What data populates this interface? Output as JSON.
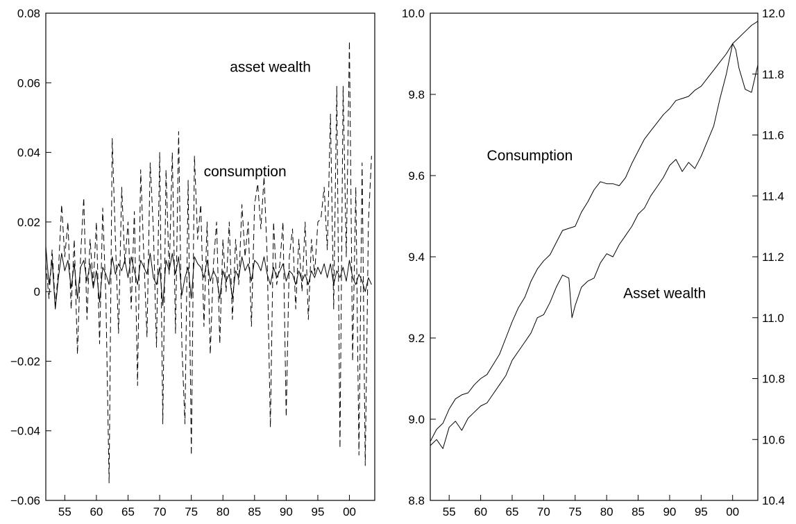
{
  "chart_data": [
    {
      "type": "line",
      "x_ticks": [
        {
          "value": 1955,
          "label": "55"
        },
        {
          "value": 1960,
          "label": "60"
        },
        {
          "value": 1965,
          "label": "65"
        },
        {
          "value": 1970,
          "label": "70"
        },
        {
          "value": 1975,
          "label": "75"
        },
        {
          "value": 1980,
          "label": "80"
        },
        {
          "value": 1985,
          "label": "85"
        },
        {
          "value": 1990,
          "label": "90"
        },
        {
          "value": 1995,
          "label": "95"
        },
        {
          "value": 2000,
          "label": "00"
        }
      ],
      "xlim": [
        1952,
        2004
      ],
      "ylim": [
        -0.06,
        0.08
      ],
      "y_ticks": [
        {
          "value": 0.08,
          "label": "0.08"
        },
        {
          "value": 0.06,
          "label": "0.06"
        },
        {
          "value": 0.04,
          "label": "0.04"
        },
        {
          "value": 0.02,
          "label": "0.02"
        },
        {
          "value": 0,
          "label": "0"
        },
        {
          "value": -0.02,
          "label": "−0.02"
        },
        {
          "value": -0.04,
          "label": "−0.04"
        },
        {
          "value": -0.06,
          "label": "−0.06"
        }
      ],
      "annotations": [
        {
          "text": "asset wealth",
          "x": 1987.5,
          "y": 0.0645
        },
        {
          "text": "consumption",
          "x": 1983.5,
          "y": 0.0345
        }
      ],
      "series": [
        {
          "style": "dashed",
          "x": [
            1952.0,
            1952.5,
            1953.0,
            1953.5,
            1954.0,
            1954.5,
            1955.0,
            1955.5,
            1956.0,
            1956.5,
            1957.0,
            1957.5,
            1958.0,
            1958.5,
            1959.0,
            1959.5,
            1960.0,
            1960.5,
            1961.0,
            1961.5,
            1962.0,
            1962.5,
            1963.0,
            1963.5,
            1964.0,
            1964.5,
            1965.0,
            1965.5,
            1966.0,
            1966.5,
            1967.0,
            1967.5,
            1968.0,
            1968.5,
            1969.0,
            1969.5,
            1970.0,
            1970.5,
            1971.0,
            1971.5,
            1972.0,
            1972.5,
            1973.0,
            1973.5,
            1974.0,
            1974.5,
            1975.0,
            1975.5,
            1976.0,
            1976.5,
            1977.0,
            1977.5,
            1978.0,
            1978.5,
            1979.0,
            1979.5,
            1980.0,
            1980.5,
            1981.0,
            1981.5,
            1982.0,
            1982.5,
            1983.0,
            1983.5,
            1984.0,
            1984.5,
            1985.0,
            1985.5,
            1986.0,
            1986.5,
            1987.0,
            1987.5,
            1988.0,
            1988.5,
            1989.0,
            1989.5,
            1990.0,
            1990.5,
            1991.0,
            1991.5,
            1992.0,
            1992.5,
            1993.0,
            1993.5,
            1994.0,
            1994.5,
            1995.0,
            1995.5,
            1996.0,
            1996.5,
            1997.0,
            1997.5,
            1998.0,
            1998.5,
            1999.0,
            1999.5,
            2000.0,
            2000.5,
            2001.0,
            2001.5,
            2002.0,
            2002.5,
            2003.0,
            2003.5
          ],
          "y": [
            0.008,
            -0.002,
            0.012,
            -0.004,
            0.006,
            0.025,
            0.01,
            0.02,
            -0.005,
            0.015,
            -0.018,
            0.01,
            0.027,
            -0.008,
            0.015,
            0.002,
            0.02,
            -0.015,
            0.024,
            -0.002,
            -0.055,
            0.044,
            0.015,
            -0.012,
            0.03,
            0.008,
            0.02,
            -0.005,
            0.023,
            -0.027,
            0.035,
            0.01,
            -0.013,
            0.037,
            0.018,
            -0.016,
            0.04,
            -0.038,
            0.035,
            0.005,
            0.04,
            -0.012,
            0.046,
            -0.015,
            -0.038,
            0.032,
            -0.047,
            0.039,
            0.015,
            0.025,
            -0.01,
            0.02,
            -0.018,
            0.008,
            0.02,
            -0.015,
            0.015,
            0.0,
            0.02,
            -0.008,
            0.015,
            0.002,
            0.025,
            0.01,
            0.02,
            -0.01,
            0.025,
            0.031,
            0.018,
            0.033,
            0.01,
            -0.039,
            0.02,
            0.002,
            0.008,
            0.02,
            -0.036,
            0.01,
            0.018,
            -0.005,
            0.015,
            0.0,
            0.02,
            -0.008,
            0.015,
            0.005,
            0.02,
            0.021,
            0.03,
            0.012,
            0.051,
            -0.005,
            0.059,
            -0.045,
            0.059,
            0.01,
            0.072,
            -0.02,
            0.03,
            -0.047,
            0.037,
            -0.05,
            0.02,
            0.039
          ]
        },
        {
          "style": "solid",
          "x": [
            1952.0,
            1952.5,
            1953.0,
            1953.5,
            1954.0,
            1954.5,
            1955.0,
            1955.5,
            1956.0,
            1956.5,
            1957.0,
            1957.5,
            1958.0,
            1958.5,
            1959.0,
            1959.5,
            1960.0,
            1960.5,
            1961.0,
            1961.5,
            1962.0,
            1962.5,
            1963.0,
            1963.5,
            1964.0,
            1964.5,
            1965.0,
            1965.5,
            1966.0,
            1966.5,
            1967.0,
            1967.5,
            1968.0,
            1968.5,
            1969.0,
            1969.5,
            1970.0,
            1970.5,
            1971.0,
            1971.5,
            1972.0,
            1972.5,
            1973.0,
            1973.5,
            1974.0,
            1974.5,
            1975.0,
            1975.5,
            1976.0,
            1976.5,
            1977.0,
            1977.5,
            1978.0,
            1978.5,
            1979.0,
            1979.5,
            1980.0,
            1980.5,
            1981.0,
            1981.5,
            1982.0,
            1982.5,
            1983.0,
            1983.5,
            1984.0,
            1984.5,
            1985.0,
            1985.5,
            1986.0,
            1986.5,
            1987.0,
            1987.5,
            1988.0,
            1988.5,
            1989.0,
            1989.5,
            1990.0,
            1990.5,
            1991.0,
            1991.5,
            1992.0,
            1992.5,
            1993.0,
            1993.5,
            1994.0,
            1994.5,
            1995.0,
            1995.5,
            1996.0,
            1996.5,
            1997.0,
            1997.5,
            1998.0,
            1998.5,
            1999.0,
            1999.5,
            2000.0,
            2000.5,
            2001.0,
            2001.5,
            2002.0,
            2002.5,
            2003.0,
            2003.5
          ],
          "y": [
            0.013,
            0.002,
            0.009,
            -0.005,
            0.004,
            0.011,
            0.006,
            0.009,
            0.001,
            0.008,
            -0.002,
            0.007,
            0.009,
            0.003,
            0.008,
            0.001,
            0.006,
            -0.003,
            0.007,
            0.005,
            0.002,
            0.01,
            0.005,
            0.008,
            0.006,
            0.009,
            0.004,
            0.01,
            0.006,
            0.002,
            0.009,
            0.007,
            0.005,
            0.011,
            0.004,
            0.002,
            0.007,
            -0.004,
            0.009,
            0.006,
            0.011,
            0.005,
            0.01,
            -0.001,
            0.004,
            0.007,
            -0.002,
            0.01,
            0.008,
            0.007,
            0.004,
            0.009,
            0.003,
            0.006,
            0.004,
            -0.002,
            0.006,
            0.003,
            0.005,
            -0.002,
            0.006,
            0.004,
            0.01,
            0.006,
            0.008,
            0.003,
            0.009,
            0.008,
            0.006,
            0.01,
            0.005,
            0.002,
            0.007,
            0.004,
            0.006,
            0.008,
            0.003,
            0.006,
            0.005,
            0.002,
            0.006,
            0.003,
            0.005,
            0.002,
            0.006,
            0.004,
            0.007,
            0.005,
            0.008,
            0.004,
            0.008,
            0.002,
            0.006,
            0.004,
            0.007,
            0.003,
            0.009,
            0.004,
            0.002,
            0.005,
            0.003,
            0.0,
            0.004,
            0.002
          ]
        }
      ]
    },
    {
      "type": "line",
      "x_ticks": [
        {
          "value": 1955,
          "label": "55"
        },
        {
          "value": 1960,
          "label": "60"
        },
        {
          "value": 1965,
          "label": "65"
        },
        {
          "value": 1970,
          "label": "70"
        },
        {
          "value": 1975,
          "label": "75"
        },
        {
          "value": 1980,
          "label": "80"
        },
        {
          "value": 1985,
          "label": "85"
        },
        {
          "value": 1990,
          "label": "90"
        },
        {
          "value": 1995,
          "label": "95"
        },
        {
          "value": 2000,
          "label": "00"
        }
      ],
      "xlim": [
        1952,
        2004
      ],
      "ylim_left": [
        8.8,
        10.0
      ],
      "ylim_right": [
        10.4,
        12.0
      ],
      "y_ticks_left": [
        {
          "value": 10.0,
          "label": "10.0"
        },
        {
          "value": 9.8,
          "label": "9.8"
        },
        {
          "value": 9.6,
          "label": "9.6"
        },
        {
          "value": 9.4,
          "label": "9.4"
        },
        {
          "value": 9.2,
          "label": "9.2"
        },
        {
          "value": 9.0,
          "label": "9.0"
        },
        {
          "value": 8.8,
          "label": "8.8"
        }
      ],
      "y_ticks_right": [
        {
          "value": 12.0,
          "label": "12.0"
        },
        {
          "value": 11.8,
          "label": "11.8"
        },
        {
          "value": 11.6,
          "label": "11.6"
        },
        {
          "value": 11.4,
          "label": "11.4"
        },
        {
          "value": 11.2,
          "label": "11.2"
        },
        {
          "value": 11.0,
          "label": "11.0"
        },
        {
          "value": 10.8,
          "label": "10.8"
        },
        {
          "value": 10.6,
          "label": "10.6"
        },
        {
          "value": 10.4,
          "label": "10.4"
        }
      ],
      "annotations": [
        {
          "text": "Consumption",
          "x": 1967.8,
          "y_left": 9.65
        },
        {
          "text": "Asset wealth",
          "x": 1989.2,
          "y_left": 9.31
        }
      ],
      "series": [
        {
          "axis": "left",
          "style": "solid",
          "x": [
            1952,
            1953,
            1954,
            1955,
            1956,
            1957,
            1958,
            1959,
            1960,
            1961,
            1962,
            1963,
            1964,
            1965,
            1966,
            1967,
            1968,
            1969,
            1970,
            1971,
            1972,
            1973,
            1974,
            1975,
            1976,
            1977,
            1978,
            1979,
            1980,
            1981,
            1982,
            1983,
            1984,
            1985,
            1986,
            1987,
            1988,
            1989,
            1990,
            1991,
            1992,
            1993,
            1994,
            1995,
            1996,
            1997,
            1998,
            1999,
            2000,
            2001,
            2002,
            2003,
            2004
          ],
          "y": [
            8.945,
            8.975,
            8.99,
            9.025,
            9.05,
            9.06,
            9.065,
            9.085,
            9.1,
            9.11,
            9.135,
            9.16,
            9.2,
            9.24,
            9.275,
            9.3,
            9.34,
            9.37,
            9.39,
            9.405,
            9.435,
            9.465,
            9.47,
            9.475,
            9.51,
            9.535,
            9.565,
            9.585,
            9.58,
            9.58,
            9.575,
            9.595,
            9.63,
            9.66,
            9.69,
            9.71,
            9.73,
            9.75,
            9.765,
            9.785,
            9.79,
            9.795,
            9.81,
            9.82,
            9.84,
            9.86,
            9.88,
            9.9,
            9.925,
            9.94,
            9.955,
            9.97,
            9.98
          ]
        },
        {
          "axis": "right",
          "style": "solid",
          "x": [
            1952,
            1953,
            1954,
            1955,
            1956,
            1957,
            1958,
            1959,
            1960,
            1961,
            1962,
            1963,
            1964,
            1965,
            1966,
            1967,
            1968,
            1969,
            1970,
            1971,
            1972,
            1973,
            1974,
            1974.5,
            1975,
            1976,
            1977,
            1978,
            1979,
            1980,
            1981,
            1982,
            1983,
            1984,
            1985,
            1986,
            1987,
            1988,
            1989,
            1990,
            1991,
            1992,
            1993,
            1994,
            1995,
            1996,
            1997,
            1998,
            1999,
            2000,
            2000.5,
            2001,
            2002,
            2003,
            2004
          ],
          "y": [
            10.58,
            10.6,
            10.57,
            10.64,
            10.66,
            10.63,
            10.67,
            10.69,
            10.71,
            10.72,
            10.75,
            10.78,
            10.81,
            10.86,
            10.89,
            10.92,
            10.95,
            11.0,
            11.01,
            11.05,
            11.1,
            11.14,
            11.13,
            11.0,
            11.04,
            11.1,
            11.12,
            11.13,
            11.18,
            11.21,
            11.2,
            11.24,
            11.27,
            11.3,
            11.34,
            11.36,
            11.4,
            11.43,
            11.46,
            11.5,
            11.52,
            11.48,
            11.51,
            11.49,
            11.53,
            11.58,
            11.63,
            11.72,
            11.8,
            11.9,
            11.88,
            11.82,
            11.75,
            11.74,
            11.83
          ]
        }
      ]
    }
  ]
}
